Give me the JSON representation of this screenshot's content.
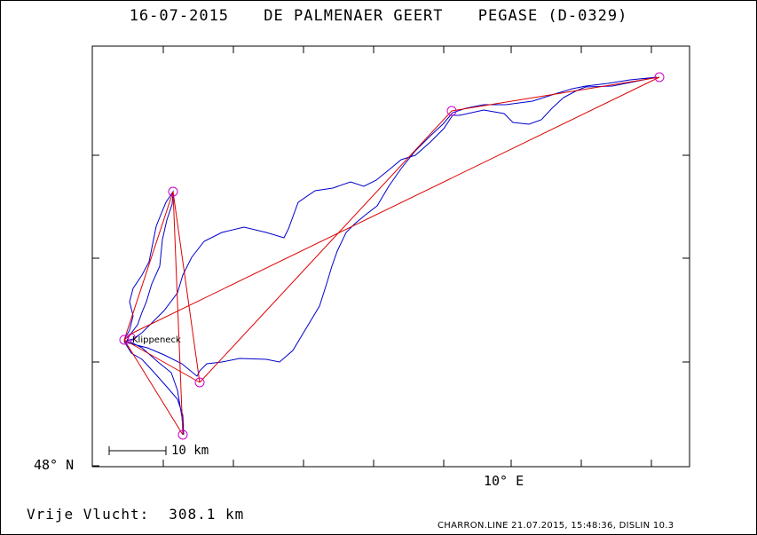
{
  "header": {
    "date": "16-07-2015",
    "pilot": "DE PALMENAER GEERT",
    "glider": "PEGASE (D-0329)"
  },
  "map": {
    "lat_label": "48° N",
    "lon_label": "10° E",
    "scale_label": "10 km",
    "place_label": "Klippeneck",
    "colors": {
      "track": "#0000cc",
      "task": "#dd0000",
      "turnpoint": "#cc00cc"
    }
  },
  "footer": {
    "distance_label": "Vrije Vlucht:",
    "distance_value": "308.1 km",
    "credits": "CHARRON.LINE 21.07.2015, 15:48:36, DISLIN 10.3"
  }
}
